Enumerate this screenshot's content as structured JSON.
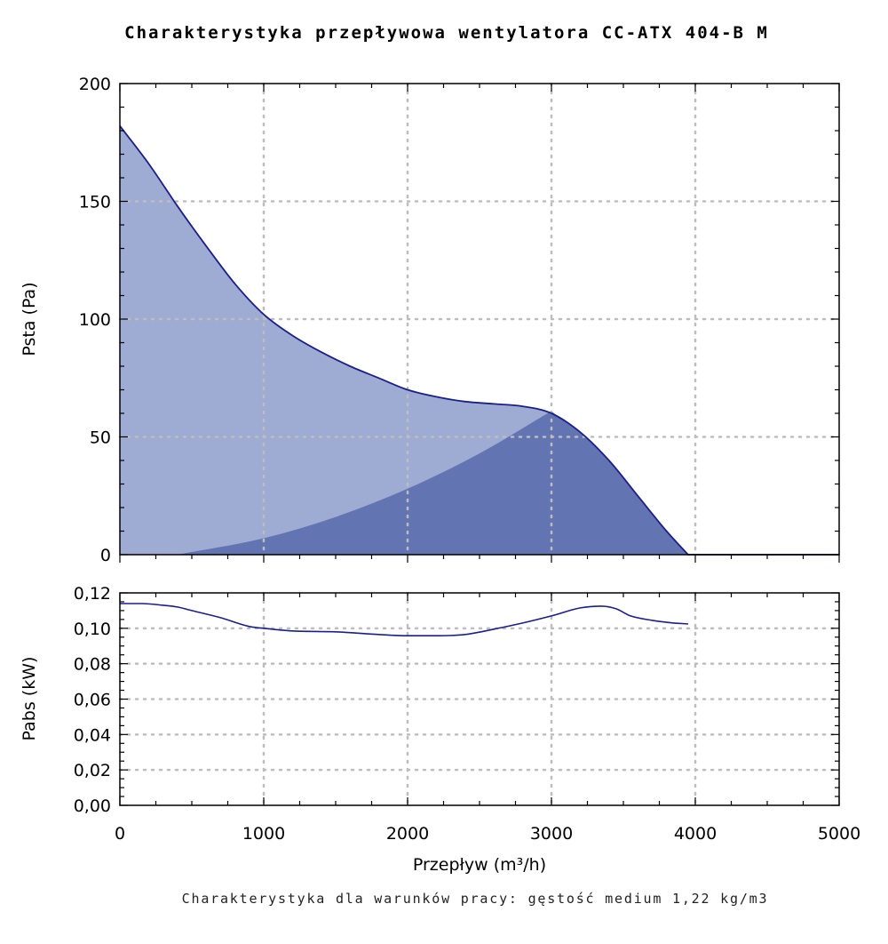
{
  "title": "Charakterystyka przepływowa wentylatora CC-ATX 404-B M",
  "note": "Charakterystyka dla warunków pracy: gęstość medium 1,22 kg/m3",
  "colors": {
    "pressure_fill": "#9eabd2",
    "efficiency_fill": "#6374b2",
    "curve": "#1a1f8a",
    "grid": "#bdbdbd"
  },
  "chart_data": [
    {
      "type": "area",
      "xlabel": "Przepływ (m³/h)",
      "ylabel": "Psta (Pa)",
      "xlim": [
        0,
        5000
      ],
      "ylim": [
        0,
        200
      ],
      "x_ticks": [
        0,
        1000,
        2000,
        3000,
        4000,
        5000
      ],
      "y_ticks": [
        "0",
        "50",
        "100",
        "150",
        "200"
      ],
      "grid": true,
      "series": [
        {
          "role": "pressure_curve",
          "x": [
            0,
            200,
            400,
            600,
            800,
            1000,
            1200,
            1400,
            1600,
            1800,
            2000,
            2200,
            2400,
            2600,
            2800,
            3000,
            3200,
            3400,
            3600,
            3800,
            3950
          ],
          "y": [
            182,
            166,
            148,
            131,
            115,
            102,
            93,
            86,
            80,
            75,
            70,
            67,
            65,
            64,
            63,
            60,
            52,
            40,
            25,
            10,
            0
          ]
        },
        {
          "role": "operating_region_boundary",
          "x": [
            400,
            1000,
            1500,
            2000,
            2500,
            3000
          ],
          "y": [
            0,
            7,
            16,
            28,
            43,
            61
          ]
        }
      ]
    },
    {
      "type": "line",
      "ylabel": "Pabs (kW)",
      "xlim": [
        0,
        5000
      ],
      "ylim": [
        0,
        0.12
      ],
      "y_ticks": [
        "0,00",
        "0,02",
        "0,04",
        "0,06",
        "0,08",
        "0,10",
        "0,12"
      ],
      "grid": true,
      "series": [
        {
          "x": [
            0,
            150,
            300,
            400,
            500,
            700,
            900,
            1000,
            1200,
            1500,
            1800,
            2000,
            2200,
            2400,
            2600,
            2800,
            3000,
            3200,
            3350,
            3450,
            3550,
            3700,
            3850,
            3950
          ],
          "y": [
            0.114,
            0.114,
            0.113,
            0.112,
            0.11,
            0.106,
            0.101,
            0.1,
            0.0985,
            0.098,
            0.0965,
            0.0958,
            0.0958,
            0.0965,
            0.0995,
            0.103,
            0.107,
            0.1115,
            0.1125,
            0.111,
            0.107,
            0.1045,
            0.103,
            0.1025
          ]
        }
      ]
    }
  ]
}
